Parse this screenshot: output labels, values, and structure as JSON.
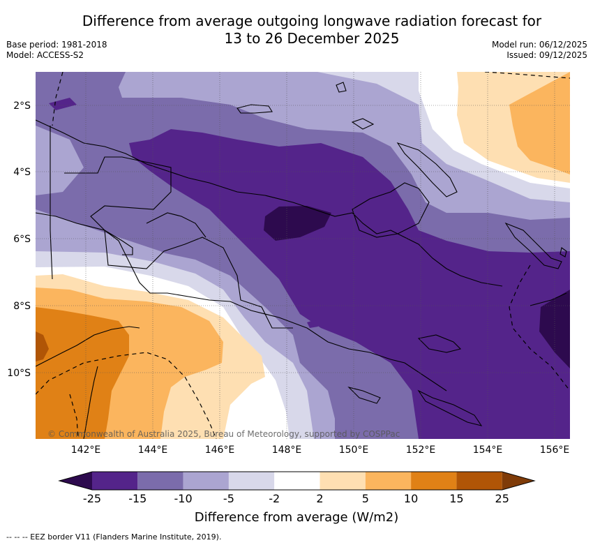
{
  "title": {
    "line1": "Difference from average outgoing longwave radiation forecast for",
    "line2": "13 to 26 December 2025"
  },
  "meta": {
    "base_period": "Base period: 1981-2018",
    "model": "Model: ACCESS-S2",
    "model_run": "Model run: 06/12/2025",
    "issued": "Issued: 09/12/2025"
  },
  "map": {
    "lon_ticks": [
      "142°E",
      "144°E",
      "146°E",
      "148°E",
      "150°E",
      "152°E",
      "154°E",
      "156°E"
    ],
    "lat_ticks": [
      "2°S",
      "4°S",
      "6°S",
      "8°S",
      "10°S"
    ],
    "copyright": "© Commonwealth of Australia 2025, Bureau of Meteorology, supported by COSPPac"
  },
  "colorbar": {
    "ticks": [
      "-25",
      "-15",
      "-10",
      "-5",
      "-2",
      "2",
      "5",
      "10",
      "15",
      "25"
    ],
    "colors": [
      "#2d0a4e",
      "#54248a",
      "#7b6cab",
      "#aba5d1",
      "#d8d8ea",
      "#ffffff",
      "#fedfb2",
      "#fbb55e",
      "#e08116",
      "#b05506",
      "#7f3b08"
    ],
    "label": "Difference from average (W/m2)"
  },
  "footer": "-- -- -- EEZ border V11 (Flanders Marine Institute, 2019)."
}
